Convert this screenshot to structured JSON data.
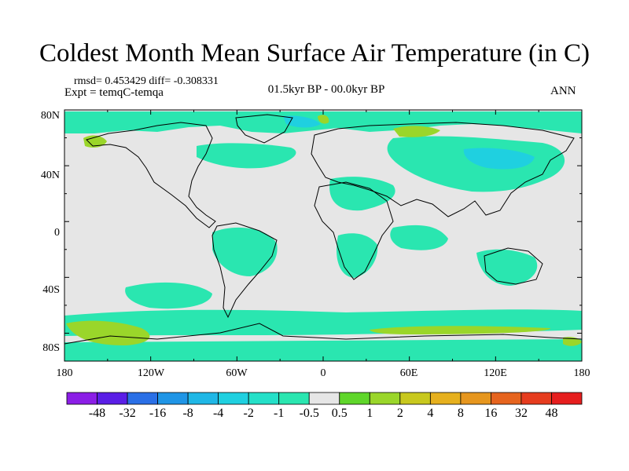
{
  "title": "Coldest Month Mean Surface Air Temperature (in C)",
  "stats": "rmsd= 0.453429  diff= -0.308331",
  "experiment": "Expt = temqC-temqa",
  "period": "01.5kyr BP - 00.0kyr BP",
  "season": "ANN",
  "lat_labels": [
    "80N",
    "40N",
    "0",
    "40S",
    "80S"
  ],
  "lon_labels": [
    "180",
    "120W",
    "60W",
    "0",
    "60E",
    "120E",
    "180"
  ],
  "colorbar": {
    "labels": [
      "-48",
      "-32",
      "-16",
      "-8",
      "-4",
      "-2",
      "-1",
      "-0.5",
      "0.5",
      "1",
      "2",
      "4",
      "8",
      "16",
      "32",
      "48"
    ],
    "colors": [
      "#8b1ee6",
      "#5a1ee6",
      "#2a6fe6",
      "#1f95e6",
      "#1fb7e6",
      "#1fd0e0",
      "#24e0c8",
      "#2ae6b0",
      "#e6e6e6",
      "#5fd62a",
      "#9ad62a",
      "#c8c81e",
      "#e6b01e",
      "#e6961e",
      "#e6641e",
      "#e63c1e",
      "#e61e1e"
    ]
  },
  "colors": {
    "neutral": "#e6e6e6",
    "cool": "#2ae6b0",
    "cooler": "#1fd0e0",
    "warm": "#9ad62a"
  }
}
